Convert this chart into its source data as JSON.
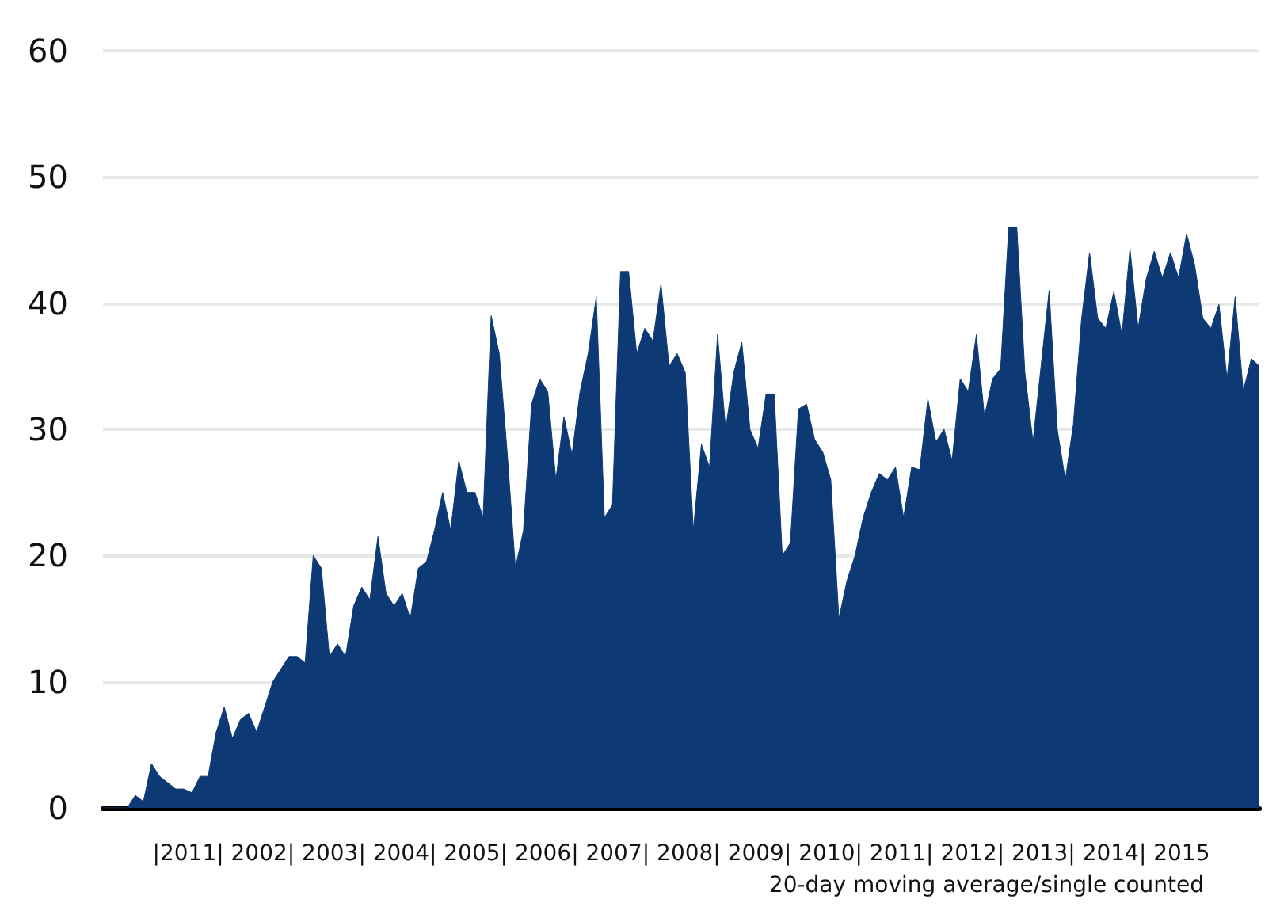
{
  "chart_data": {
    "type": "area",
    "xlabel": "|2011| 2002| 2003| 2004| 2005| 2006| 2007| 2008| 2009| 2010| 2011| 2012| 2013| 2014| 2015",
    "annotations": [
      "20-day moving average/single counted"
    ],
    "categories": [
      null,
      null,
      null,
      null,
      null,
      null,
      null,
      null,
      null,
      null,
      null,
      null,
      null,
      null,
      null,
      null,
      null,
      null,
      null,
      null,
      null,
      null,
      null,
      null,
      null,
      null,
      null,
      null,
      null,
      null,
      null,
      null,
      null,
      null,
      null,
      null,
      null,
      null,
      null,
      null,
      null,
      null,
      null,
      null,
      null,
      null,
      null,
      null,
      null,
      null,
      null,
      null,
      null,
      null,
      null,
      null,
      null,
      null,
      null,
      null,
      null,
      null,
      null,
      null,
      null,
      null,
      null,
      null,
      null,
      null,
      null,
      null,
      null,
      null,
      null,
      null,
      null,
      null,
      null,
      null,
      null,
      null,
      null,
      null,
      null,
      null,
      null,
      null,
      null,
      null,
      null,
      null,
      null,
      null,
      null,
      null,
      null,
      null,
      null,
      null,
      null,
      null,
      null,
      null,
      null,
      null,
      null,
      null,
      null,
      null,
      null,
      null,
      null,
      null,
      null,
      null,
      null,
      null,
      null,
      null,
      null,
      null,
      null,
      null,
      null,
      null,
      null,
      null,
      null,
      null,
      null,
      null,
      null,
      null,
      null,
      null,
      null,
      null,
      null,
      null,
      null,
      null,
      null,
      null
    ],
    "series": [
      {
        "color": "#0d3a75",
        "values": [
          0,
          0,
          0,
          0,
          1,
          0.5,
          3.5,
          2.5,
          2,
          1.5,
          1.5,
          1.2,
          2.5,
          2.5,
          6,
          8,
          5.5,
          7,
          7.5,
          6,
          8,
          10,
          11,
          12,
          12,
          11.5,
          20,
          19,
          12,
          13,
          12,
          16,
          17.5,
          16.5,
          21.5,
          17,
          16,
          17,
          15,
          19,
          19.5,
          22,
          25,
          22,
          27.5,
          25,
          25,
          23,
          39,
          36,
          28,
          19,
          22,
          32,
          34,
          33,
          26,
          31,
          28,
          33,
          36,
          40.5,
          23,
          24,
          42.5,
          42.5,
          36,
          38,
          37,
          41.5,
          35,
          36,
          34.5,
          22,
          28.8,
          27,
          37.5,
          30,
          34.5,
          36.9,
          30,
          28.5,
          32.8,
          32.8,
          20,
          21,
          31.6,
          32,
          29.2,
          28.2,
          26,
          15,
          18,
          20,
          23,
          25,
          26.5,
          26,
          27,
          23,
          27,
          26.8,
          32.4,
          29,
          30,
          27.5,
          34,
          33,
          37.5,
          31,
          34,
          34.8,
          46,
          46,
          34.5,
          29,
          35,
          41,
          30,
          26,
          30.4,
          38.7,
          44,
          38.8,
          38,
          40.9,
          37.5,
          44.3,
          38,
          41.9,
          44.1,
          42,
          44,
          42,
          45.5,
          43,
          38.8,
          38,
          39.9,
          34,
          40.5,
          33,
          35.6,
          35
        ]
      }
    ],
    "ylim": [
      0,
      60
    ],
    "yticks": [
      0,
      10,
      20,
      30,
      40,
      50,
      60
    ],
    "grid": "y"
  }
}
